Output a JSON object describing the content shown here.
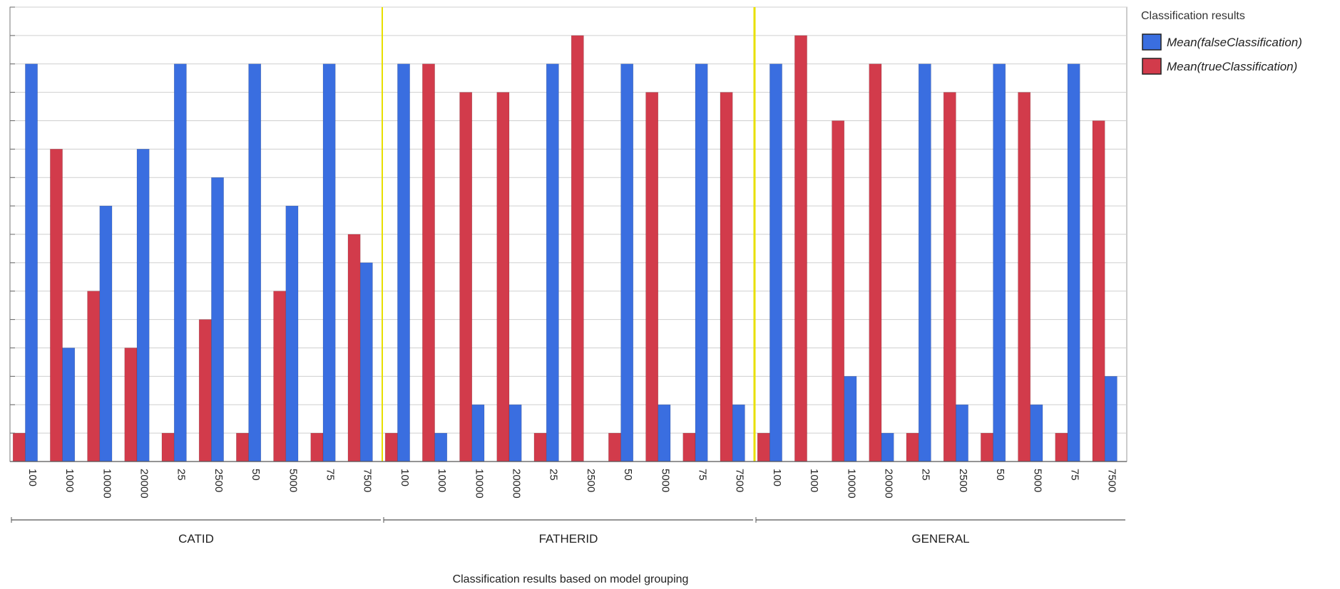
{
  "chart_data": {
    "type": "bar",
    "xlabel": "Classification results based on model grouping",
    "groups": [
      {
        "name": "CATID",
        "categories": [
          "100",
          "1000",
          "10000",
          "20000",
          "25",
          "2500",
          "50",
          "5000",
          "75",
          "7500"
        ]
      },
      {
        "name": "FATHERID",
        "categories": [
          "100",
          "1000",
          "10000",
          "20000",
          "25",
          "2500",
          "50",
          "5000",
          "75",
          "7500"
        ]
      },
      {
        "name": "GENERAL",
        "categories": [
          "100",
          "1000",
          "10000",
          "20000",
          "25",
          "2500",
          "50",
          "5000",
          "75",
          "7500"
        ]
      }
    ],
    "series": [
      {
        "name": "Mean(trueClassification)",
        "color": "#d23b4b",
        "values": [
          1,
          11,
          6,
          4,
          1,
          5,
          1,
          6,
          1,
          8,
          1,
          14,
          13,
          13,
          1,
          15,
          1,
          13,
          1,
          13,
          1,
          15,
          12,
          14,
          1,
          13,
          1,
          13,
          1,
          12
        ]
      },
      {
        "name": "Mean(falseClassification)",
        "color": "#3a6ee0",
        "values": [
          14,
          4,
          9,
          11,
          14,
          10,
          14,
          9,
          14,
          7,
          14,
          1,
          2,
          2,
          14,
          0,
          14,
          2,
          14,
          2,
          14,
          0,
          3,
          1,
          14,
          2,
          14,
          2,
          14,
          3
        ]
      }
    ],
    "ylim": [
      0,
      16
    ],
    "grid": true,
    "legend": {
      "title": "Classification results",
      "placement": "top-right",
      "entries": [
        "Mean(falseClassification)",
        "Mean(trueClassification)"
      ]
    },
    "separator_color": "#e8e000"
  }
}
